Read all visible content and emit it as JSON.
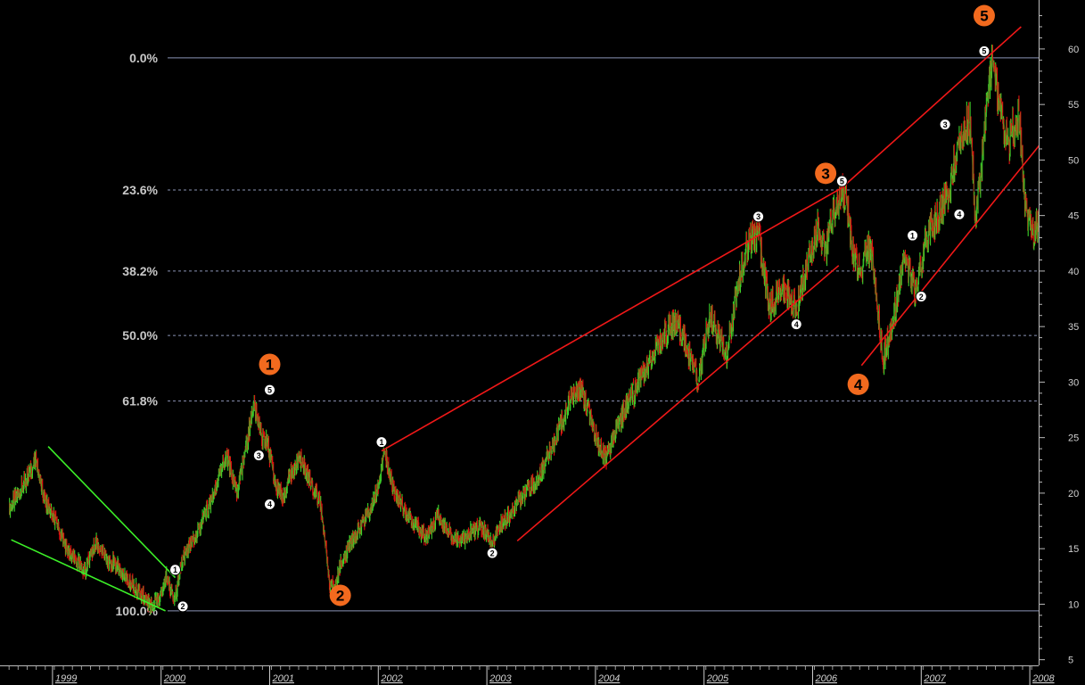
{
  "chart_data": {
    "type": "line",
    "title": "",
    "xlabel": "",
    "ylabel": "",
    "background": "#000000",
    "ylim": [
      4,
      64
    ],
    "xlim": [
      1998.6,
      2008.35
    ],
    "y_axis_position": "right",
    "y_ticks": [
      5,
      10,
      15,
      20,
      25,
      30,
      35,
      40,
      45,
      50,
      55,
      60
    ],
    "x_tick_labels": [
      {
        "year": 1999,
        "label": "1999"
      },
      {
        "year": 2000,
        "label": "2000"
      },
      {
        "year": 2001,
        "label": "2001"
      },
      {
        "year": 2002,
        "label": "2002"
      },
      {
        "year": 2003,
        "label": "2003"
      },
      {
        "year": 2004,
        "label": "2004"
      },
      {
        "year": 2005,
        "label": "2005"
      },
      {
        "year": 2006,
        "label": "2006"
      },
      {
        "year": 2007,
        "label": "2007"
      },
      {
        "year": 2008,
        "label": "2008"
      }
    ],
    "fib_levels": [
      {
        "label": "0.0%",
        "value": 59.2,
        "style": "solid"
      },
      {
        "label": "23.6%",
        "value": 47.3,
        "style": "dashed"
      },
      {
        "label": "38.2%",
        "value": 40.0,
        "style": "dashed"
      },
      {
        "label": "50.0%",
        "value": 34.2,
        "style": "dashed"
      },
      {
        "label": "61.8%",
        "value": 28.3,
        "style": "dashed"
      },
      {
        "label": "100.0%",
        "value": 9.4,
        "style": "solid"
      }
    ],
    "series": [
      {
        "x": [
          1998.6,
          1998.75,
          1998.85,
          1998.92,
          1999.05,
          1999.15,
          1999.3,
          1999.4,
          1999.5,
          1999.6,
          1999.75,
          1999.85,
          1999.92,
          2000.0,
          2000.05,
          2000.12,
          2000.2,
          2000.3,
          2000.45,
          2000.55,
          2000.6,
          2000.7,
          2000.78,
          2000.85,
          2000.93,
          2000.98,
          2001.05,
          2001.12,
          2001.2,
          2001.28,
          2001.38,
          2001.47,
          2001.55,
          2001.6,
          2001.65,
          2001.72,
          2001.8,
          2001.9,
          2002.0,
          2002.06,
          2002.15,
          2002.25,
          2002.35,
          2002.45,
          2002.55,
          2002.65,
          2002.75,
          2002.85,
          2002.95,
          2003.05,
          2003.1,
          2003.2,
          2003.3,
          2003.45,
          2003.6,
          2003.75,
          2003.85,
          2003.95,
          2004.0,
          2004.1,
          2004.2,
          2004.35,
          2004.5,
          2004.65,
          2004.75,
          2004.85,
          2004.95,
          2005.05,
          2005.15,
          2005.2,
          2005.3,
          2005.42,
          2005.5,
          2005.6,
          2005.75,
          2005.85,
          2005.95,
          2006.05,
          2006.12,
          2006.2,
          2006.3,
          2006.38,
          2006.45,
          2006.5,
          2006.55,
          2006.65,
          2006.75,
          2006.85,
          2006.9,
          2006.95,
          2007.05,
          2007.15,
          2007.25,
          2007.35,
          2007.45,
          2007.5,
          2007.55,
          2007.65,
          2007.7,
          2007.8,
          2007.9,
          2007.95,
          2008.0,
          2008.05,
          2008.15,
          2008.25,
          2008.3
        ],
        "y": [
          18.5,
          21.0,
          23.0,
          19.5,
          17.0,
          14.5,
          13.0,
          15.5,
          14.0,
          13.5,
          11.5,
          10.5,
          9.6,
          11.0,
          12.5,
          10.2,
          14.0,
          16.0,
          19.0,
          22.0,
          23.5,
          20.0,
          24.0,
          28.0,
          25.0,
          24.5,
          21.0,
          19.5,
          22.0,
          23.0,
          21.0,
          19.0,
          12.0,
          11.5,
          13.5,
          15.0,
          16.5,
          18.0,
          20.5,
          23.8,
          20.0,
          18.5,
          17.0,
          16.0,
          18.0,
          16.5,
          15.5,
          16.5,
          17.0,
          15.5,
          16.8,
          18.0,
          19.5,
          21.0,
          24.0,
          28.0,
          29.5,
          27.0,
          25.0,
          23.0,
          26.0,
          29.0,
          32.0,
          34.5,
          35.5,
          33.0,
          30.0,
          36.0,
          34.0,
          32.0,
          38.0,
          43.0,
          43.5,
          37.0,
          38.5,
          36.5,
          40.5,
          44.0,
          42.0,
          45.5,
          47.2,
          41.0,
          40.0,
          42.0,
          41.5,
          32.0,
          36.0,
          41.5,
          39.5,
          38.0,
          43.0,
          45.0,
          47.0,
          52.0,
          53.5,
          45.0,
          49.0,
          59.2,
          56.0,
          51.5,
          54.0,
          47.0,
          44.0,
          43.0,
          49.0,
          53.0,
          51.0
        ],
        "color_up": "#3cd22a",
        "color_down": "#e01010"
      }
    ],
    "trendlines_green": [
      {
        "from": [
          1998.62,
          15.8
        ],
        "to": [
          2000.04,
          9.4
        ]
      },
      {
        "from": [
          1998.96,
          24.2
        ],
        "to": [
          2000.13,
          12.4
        ]
      }
    ],
    "trendlines_red": [
      {
        "from": [
          2002.03,
          23.8
        ],
        "to": [
          2006.27,
          47.5
        ]
      },
      {
        "from": [
          2006.27,
          47.5
        ],
        "to": [
          2007.92,
          62.0
        ]
      },
      {
        "from": [
          2003.28,
          15.7
        ],
        "to": [
          2006.24,
          40.5
        ]
      },
      {
        "from": [
          2006.45,
          31.5
        ],
        "to": [
          2008.35,
          54.5
        ]
      }
    ],
    "annotations": {
      "main_waves": [
        {
          "label": "1",
          "x": 2001.0,
          "y": 31.6
        },
        {
          "label": "2",
          "x": 2001.65,
          "y": 10.8
        },
        {
          "label": "3",
          "x": 2006.12,
          "y": 48.8
        },
        {
          "label": "4",
          "x": 2006.42,
          "y": 29.8
        },
        {
          "label": "5",
          "x": 2007.58,
          "y": 63.0
        }
      ],
      "sub_waves": [
        {
          "label": "1",
          "x": 2000.13,
          "y": 13.1
        },
        {
          "label": "2",
          "x": 2000.2,
          "y": 9.8
        },
        {
          "label": "3",
          "x": 2000.9,
          "y": 23.4
        },
        {
          "label": "4",
          "x": 2001.0,
          "y": 19.0
        },
        {
          "label": "5",
          "x": 2001.0,
          "y": 29.3
        },
        {
          "label": "1",
          "x": 2002.03,
          "y": 24.6
        },
        {
          "label": "2",
          "x": 2003.05,
          "y": 14.6
        },
        {
          "label": "3",
          "x": 2005.5,
          "y": 44.9
        },
        {
          "label": "4",
          "x": 2005.85,
          "y": 35.2
        },
        {
          "label": "5",
          "x": 2006.27,
          "y": 48.1
        },
        {
          "label": "1",
          "x": 2006.92,
          "y": 43.2
        },
        {
          "label": "2",
          "x": 2007.0,
          "y": 37.7
        },
        {
          "label": "3",
          "x": 2007.22,
          "y": 53.2
        },
        {
          "label": "4",
          "x": 2007.35,
          "y": 45.1
        },
        {
          "label": "5",
          "x": 2007.58,
          "y": 59.8
        }
      ]
    }
  }
}
